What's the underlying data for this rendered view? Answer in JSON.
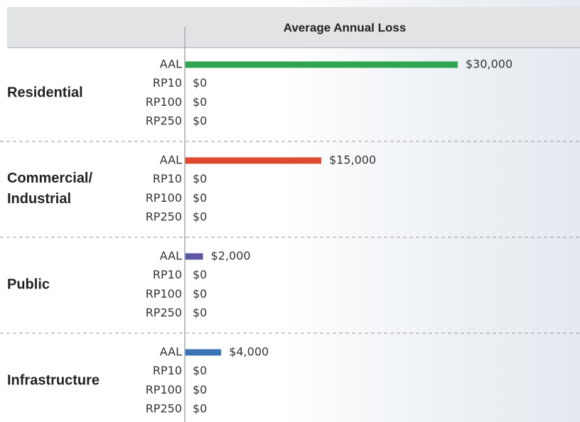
{
  "chart_data": {
    "type": "bar",
    "orientation": "horizontal",
    "title": "Average Annual Loss",
    "xlim": [
      0,
      30000
    ],
    "groups": [
      {
        "name": "Residential",
        "color": "#2fa550",
        "categories": [
          "AAL",
          "RP10",
          "RP100",
          "RP250"
        ],
        "values": [
          30000,
          0,
          0,
          0
        ],
        "value_labels": [
          "$30,000",
          "$0",
          "$0",
          "$0"
        ]
      },
      {
        "name": "Commercial/ Industrial",
        "color": "#e0482f",
        "categories": [
          "AAL",
          "RP10",
          "RP100",
          "RP250"
        ],
        "values": [
          15000,
          0,
          0,
          0
        ],
        "value_labels": [
          "$15,000",
          "$0",
          "$0",
          "$0"
        ]
      },
      {
        "name": "Public",
        "color": "#5e58a4",
        "categories": [
          "AAL",
          "RP10",
          "RP100",
          "RP250"
        ],
        "values": [
          2000,
          0,
          0,
          0
        ],
        "value_labels": [
          "$2,000",
          "$0",
          "$0",
          "$0"
        ]
      },
      {
        "name": "Infrastructure",
        "color": "#3a74b4",
        "categories": [
          "AAL",
          "RP10",
          "RP100",
          "RP250"
        ],
        "values": [
          4000,
          0,
          0,
          0
        ],
        "value_labels": [
          "$4,000",
          "$0",
          "$0",
          "$0"
        ]
      }
    ]
  }
}
